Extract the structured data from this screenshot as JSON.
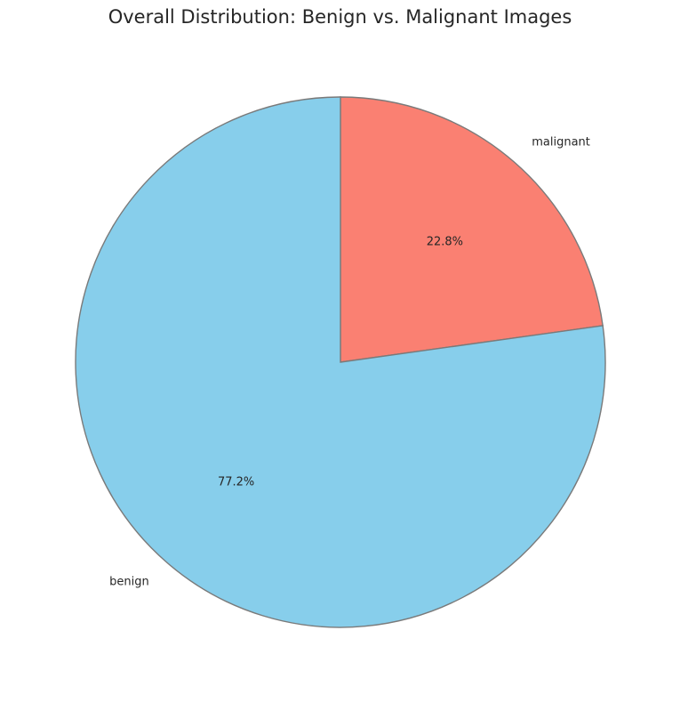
{
  "chart_data": {
    "type": "pie",
    "title": "Overall Distribution: Benign vs. Malignant Images",
    "slices": [
      {
        "label": "malignant",
        "value": 22.8,
        "pct_label": "22.8%",
        "color": "#FA8072"
      },
      {
        "label": "benign",
        "value": 77.2,
        "pct_label": "77.2%",
        "color": "#87CEEB"
      }
    ],
    "start_angle_deg": 90,
    "direction": "clockwise",
    "edge_color": "#7a7a7a",
    "legend": "none"
  }
}
